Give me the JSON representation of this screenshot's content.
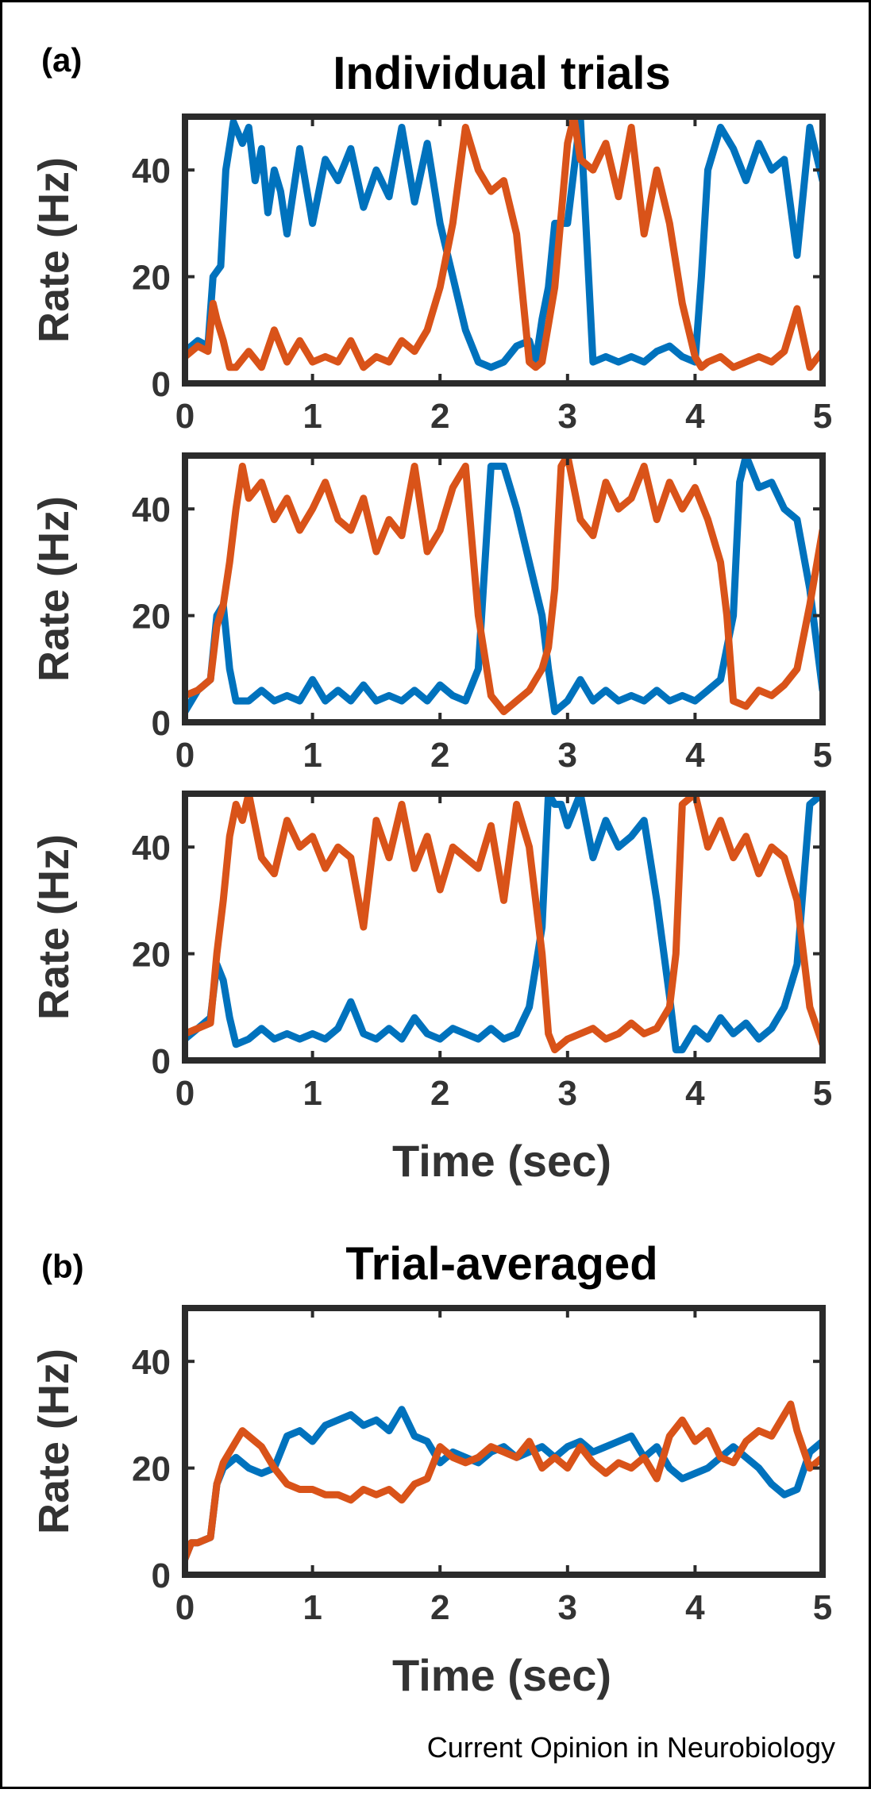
{
  "figure": {
    "credit": "Current Opinion in Neurobiology",
    "panel_a_letter": "(a)",
    "panel_b_letter": "(b)"
  },
  "colors": {
    "blue": "#0072BD",
    "orange": "#D95319",
    "axis": "#2b2b2b",
    "text": "#333333"
  },
  "chart_data": [
    {
      "id": "a1",
      "type": "line",
      "title": "Individual trials",
      "xlabel": "",
      "ylabel": "Rate (Hz)",
      "xlim": [
        0,
        5
      ],
      "ylim": [
        0,
        50
      ],
      "xticks": [
        0,
        1,
        2,
        3,
        4,
        5
      ],
      "yticks": [
        0,
        20,
        40
      ],
      "grid": false,
      "series": [
        {
          "color": "blue",
          "x": [
            0,
            0.1,
            0.18,
            0.22,
            0.28,
            0.32,
            0.38,
            0.45,
            0.5,
            0.55,
            0.6,
            0.65,
            0.7,
            0.75,
            0.8,
            0.9,
            1.0,
            1.1,
            1.2,
            1.3,
            1.4,
            1.5,
            1.6,
            1.7,
            1.8,
            1.9,
            2.0,
            2.1,
            2.2,
            2.3,
            2.4,
            2.5,
            2.6,
            2.7,
            2.75,
            2.8,
            2.85,
            2.9,
            3.0,
            3.1,
            3.2,
            3.3,
            3.4,
            3.5,
            3.6,
            3.7,
            3.8,
            3.9,
            4.0,
            4.05,
            4.1,
            4.2,
            4.3,
            4.4,
            4.5,
            4.6,
            4.7,
            4.8,
            4.9,
            5.0
          ],
          "y": [
            6,
            8,
            7,
            20,
            22,
            40,
            49,
            45,
            48,
            38,
            44,
            32,
            40,
            36,
            28,
            44,
            30,
            42,
            38,
            44,
            33,
            40,
            35,
            48,
            34,
            45,
            30,
            20,
            10,
            4,
            3,
            4,
            7,
            8,
            4,
            12,
            18,
            30,
            30,
            50,
            4,
            5,
            4,
            5,
            4,
            6,
            7,
            5,
            4,
            20,
            40,
            48,
            44,
            38,
            45,
            40,
            42,
            24,
            48,
            38
          ]
        },
        {
          "color": "orange",
          "x": [
            0,
            0.1,
            0.18,
            0.22,
            0.25,
            0.3,
            0.35,
            0.4,
            0.5,
            0.6,
            0.7,
            0.8,
            0.9,
            1.0,
            1.1,
            1.2,
            1.3,
            1.4,
            1.5,
            1.6,
            1.7,
            1.8,
            1.9,
            2.0,
            2.1,
            2.2,
            2.3,
            2.4,
            2.5,
            2.6,
            2.7,
            2.75,
            2.8,
            2.9,
            3.0,
            3.05,
            3.1,
            3.2,
            3.3,
            3.4,
            3.5,
            3.6,
            3.7,
            3.8,
            3.9,
            4.0,
            4.05,
            4.1,
            4.2,
            4.3,
            4.4,
            4.5,
            4.6,
            4.7,
            4.8,
            4.9,
            5.0
          ],
          "y": [
            5,
            7,
            6,
            15,
            12,
            8,
            3,
            3,
            6,
            3,
            10,
            4,
            8,
            4,
            5,
            4,
            8,
            3,
            5,
            4,
            8,
            6,
            10,
            18,
            30,
            48,
            40,
            36,
            38,
            28,
            4,
            3,
            4,
            18,
            45,
            50,
            42,
            40,
            45,
            35,
            48,
            28,
            40,
            30,
            15,
            5,
            3,
            4,
            5,
            3,
            4,
            5,
            4,
            6,
            14,
            3,
            6
          ]
        }
      ]
    },
    {
      "id": "a2",
      "type": "line",
      "title": "",
      "xlabel": "",
      "ylabel": "Rate (Hz)",
      "xlim": [
        0,
        5
      ],
      "ylim": [
        0,
        50
      ],
      "xticks": [
        0,
        1,
        2,
        3,
        4,
        5
      ],
      "yticks": [
        0,
        20,
        40
      ],
      "grid": false,
      "series": [
        {
          "color": "blue",
          "x": [
            0,
            0.1,
            0.2,
            0.25,
            0.3,
            0.35,
            0.4,
            0.5,
            0.6,
            0.7,
            0.8,
            0.9,
            1.0,
            1.1,
            1.2,
            1.3,
            1.4,
            1.5,
            1.6,
            1.7,
            1.8,
            1.9,
            2.0,
            2.1,
            2.2,
            2.3,
            2.4,
            2.5,
            2.6,
            2.7,
            2.8,
            2.85,
            2.9,
            3.0,
            3.1,
            3.2,
            3.3,
            3.4,
            3.5,
            3.6,
            3.7,
            3.8,
            3.9,
            4.0,
            4.1,
            4.2,
            4.3,
            4.35,
            4.4,
            4.5,
            4.6,
            4.7,
            4.8,
            4.9,
            5.0
          ],
          "y": [
            2,
            6,
            8,
            20,
            22,
            10,
            4,
            4,
            6,
            4,
            5,
            4,
            8,
            4,
            6,
            4,
            7,
            4,
            5,
            4,
            6,
            4,
            7,
            5,
            4,
            10,
            48,
            48,
            40,
            30,
            20,
            10,
            2,
            4,
            8,
            4,
            6,
            4,
            5,
            4,
            6,
            4,
            5,
            4,
            6,
            8,
            20,
            45,
            50,
            44,
            45,
            40,
            38,
            25,
            6
          ]
        },
        {
          "color": "orange",
          "x": [
            0,
            0.1,
            0.2,
            0.25,
            0.3,
            0.35,
            0.4,
            0.45,
            0.5,
            0.6,
            0.7,
            0.8,
            0.9,
            1.0,
            1.1,
            1.2,
            1.3,
            1.4,
            1.5,
            1.6,
            1.7,
            1.8,
            1.9,
            2.0,
            2.1,
            2.2,
            2.3,
            2.4,
            2.5,
            2.6,
            2.7,
            2.8,
            2.85,
            2.9,
            2.95,
            3.0,
            3.1,
            3.2,
            3.3,
            3.4,
            3.5,
            3.6,
            3.7,
            3.8,
            3.9,
            4.0,
            4.1,
            4.2,
            4.25,
            4.3,
            4.4,
            4.5,
            4.6,
            4.7,
            4.8,
            4.9,
            5.0
          ],
          "y": [
            5,
            6,
            8,
            18,
            22,
            30,
            40,
            48,
            42,
            45,
            38,
            42,
            36,
            40,
            45,
            38,
            36,
            42,
            32,
            38,
            35,
            48,
            32,
            36,
            44,
            48,
            20,
            5,
            2,
            4,
            6,
            10,
            14,
            25,
            48,
            50,
            38,
            35,
            45,
            40,
            42,
            48,
            38,
            45,
            40,
            44,
            38,
            30,
            20,
            4,
            3,
            6,
            5,
            7,
            10,
            22,
            36
          ]
        }
      ]
    },
    {
      "id": "a3",
      "type": "line",
      "title": "",
      "xlabel": "Time (sec)",
      "ylabel": "Rate (Hz)",
      "xlim": [
        0,
        5
      ],
      "ylim": [
        0,
        50
      ],
      "xticks": [
        0,
        1,
        2,
        3,
        4,
        5
      ],
      "yticks": [
        0,
        20,
        40
      ],
      "grid": false,
      "series": [
        {
          "color": "blue",
          "x": [
            0,
            0.1,
            0.2,
            0.25,
            0.3,
            0.35,
            0.4,
            0.5,
            0.6,
            0.7,
            0.8,
            0.9,
            1.0,
            1.1,
            1.2,
            1.3,
            1.4,
            1.5,
            1.6,
            1.7,
            1.8,
            1.9,
            2.0,
            2.1,
            2.2,
            2.3,
            2.4,
            2.5,
            2.6,
            2.7,
            2.8,
            2.85,
            2.9,
            2.95,
            3.0,
            3.1,
            3.2,
            3.3,
            3.4,
            3.5,
            3.6,
            3.7,
            3.8,
            3.85,
            3.9,
            4.0,
            4.1,
            4.2,
            4.3,
            4.4,
            4.5,
            4.6,
            4.7,
            4.8,
            4.9,
            5.0
          ],
          "y": [
            4,
            6,
            8,
            18,
            15,
            8,
            3,
            4,
            6,
            4,
            5,
            4,
            5,
            4,
            6,
            11,
            5,
            4,
            6,
            4,
            8,
            5,
            4,
            6,
            5,
            4,
            6,
            4,
            5,
            10,
            25,
            50,
            48,
            48,
            44,
            50,
            38,
            45,
            40,
            42,
            45,
            30,
            12,
            2,
            2,
            6,
            4,
            8,
            5,
            7,
            4,
            6,
            10,
            18,
            48,
            50
          ]
        },
        {
          "color": "orange",
          "x": [
            0,
            0.1,
            0.2,
            0.25,
            0.3,
            0.35,
            0.4,
            0.45,
            0.5,
            0.6,
            0.7,
            0.8,
            0.9,
            1.0,
            1.1,
            1.2,
            1.3,
            1.4,
            1.5,
            1.6,
            1.7,
            1.8,
            1.9,
            2.0,
            2.1,
            2.2,
            2.3,
            2.4,
            2.5,
            2.6,
            2.7,
            2.8,
            2.85,
            2.9,
            3.0,
            3.1,
            3.2,
            3.3,
            3.4,
            3.5,
            3.6,
            3.7,
            3.8,
            3.85,
            3.9,
            4.0,
            4.1,
            4.2,
            4.3,
            4.4,
            4.5,
            4.6,
            4.7,
            4.8,
            4.9,
            5.0
          ],
          "y": [
            5,
            6,
            7,
            20,
            30,
            42,
            48,
            45,
            50,
            38,
            35,
            45,
            40,
            42,
            36,
            40,
            38,
            25,
            45,
            38,
            48,
            36,
            42,
            32,
            40,
            38,
            36,
            44,
            30,
            48,
            40,
            20,
            5,
            2,
            4,
            5,
            6,
            4,
            5,
            7,
            5,
            6,
            10,
            20,
            48,
            50,
            40,
            45,
            38,
            42,
            35,
            40,
            38,
            30,
            10,
            3
          ]
        }
      ]
    },
    {
      "id": "b",
      "type": "line",
      "title": "Trial-averaged",
      "xlabel": "Time (sec)",
      "ylabel": "Rate (Hz)",
      "xlim": [
        0,
        5
      ],
      "ylim": [
        0,
        50
      ],
      "xticks": [
        0,
        1,
        2,
        3,
        4,
        5
      ],
      "yticks": [
        0,
        20,
        40
      ],
      "grid": false,
      "series": [
        {
          "color": "blue",
          "x": [
            0,
            0.05,
            0.1,
            0.2,
            0.25,
            0.3,
            0.4,
            0.5,
            0.6,
            0.7,
            0.8,
            0.9,
            1.0,
            1.1,
            1.2,
            1.3,
            1.4,
            1.5,
            1.6,
            1.7,
            1.8,
            1.9,
            2.0,
            2.1,
            2.2,
            2.3,
            2.4,
            2.5,
            2.6,
            2.7,
            2.8,
            2.9,
            3.0,
            3.1,
            3.2,
            3.3,
            3.4,
            3.5,
            3.6,
            3.7,
            3.8,
            3.9,
            4.0,
            4.1,
            4.2,
            4.3,
            4.4,
            4.5,
            4.6,
            4.7,
            4.8,
            4.9,
            5.0
          ],
          "y": [
            3,
            6,
            6,
            7,
            17,
            20,
            22,
            20,
            19,
            20,
            26,
            27,
            25,
            28,
            29,
            30,
            28,
            29,
            27,
            31,
            26,
            25,
            21,
            23,
            22,
            21,
            23,
            24,
            22,
            23,
            24,
            22,
            24,
            25,
            23,
            24,
            25,
            26,
            22,
            24,
            20,
            18,
            19,
            20,
            22,
            24,
            22,
            20,
            17,
            15,
            16,
            23,
            25
          ]
        },
        {
          "color": "orange",
          "x": [
            0,
            0.05,
            0.1,
            0.2,
            0.25,
            0.3,
            0.4,
            0.45,
            0.5,
            0.6,
            0.7,
            0.8,
            0.9,
            1.0,
            1.1,
            1.2,
            1.3,
            1.4,
            1.5,
            1.6,
            1.7,
            1.8,
            1.9,
            2.0,
            2.1,
            2.2,
            2.3,
            2.4,
            2.5,
            2.6,
            2.7,
            2.8,
            2.9,
            3.0,
            3.1,
            3.2,
            3.3,
            3.4,
            3.5,
            3.6,
            3.7,
            3.8,
            3.9,
            4.0,
            4.1,
            4.2,
            4.3,
            4.4,
            4.5,
            4.6,
            4.7,
            4.75,
            4.8,
            4.9,
            5.0
          ],
          "y": [
            3,
            6,
            6,
            7,
            17,
            21,
            25,
            27,
            26,
            24,
            20,
            17,
            16,
            16,
            15,
            15,
            14,
            16,
            15,
            16,
            14,
            17,
            18,
            24,
            22,
            21,
            22,
            24,
            23,
            22,
            25,
            20,
            22,
            20,
            24,
            21,
            19,
            21,
            20,
            22,
            18,
            26,
            29,
            25,
            27,
            22,
            21,
            25,
            27,
            26,
            30,
            32,
            27,
            20,
            22
          ]
        }
      ]
    }
  ]
}
